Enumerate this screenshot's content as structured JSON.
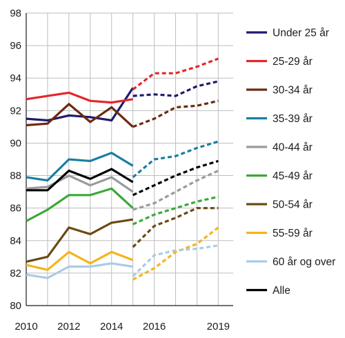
{
  "chart_data": {
    "type": "line",
    "title": "",
    "xlabel": "",
    "ylabel": "",
    "xlim": [
      2010,
      2019.7
    ],
    "ylim": [
      80,
      98
    ],
    "y_ticks": [
      80,
      82,
      84,
      86,
      88,
      90,
      92,
      94,
      96,
      98
    ],
    "x_ticks": [
      2010,
      2012,
      2014,
      2016,
      2019
    ],
    "vertical_grid": [
      2011,
      2012,
      2013,
      2014,
      2015,
      2016,
      2017,
      2018,
      2019
    ],
    "grid": true,
    "legend_position": "right",
    "series": [
      {
        "name": "Under 25 år",
        "color": "#1f1a6e",
        "actual": {
          "x": [
            2010,
            2011,
            2012,
            2013,
            2014,
            2015
          ],
          "y": [
            91.5,
            91.4,
            91.7,
            91.6,
            91.4,
            93.4
          ]
        },
        "projected": {
          "x": [
            2015,
            2016,
            2017,
            2018,
            2019
          ],
          "y": [
            92.9,
            93.0,
            92.9,
            93.5,
            93.8
          ]
        }
      },
      {
        "name": "25-29 år",
        "color": "#e3262b",
        "actual": {
          "x": [
            2010,
            2011,
            2012,
            2013,
            2014,
            2015
          ],
          "y": [
            92.7,
            92.9,
            93.1,
            92.6,
            92.5,
            92.7
          ]
        },
        "projected": {
          "x": [
            2015,
            2016,
            2017,
            2018,
            2019
          ],
          "y": [
            93.3,
            94.3,
            94.3,
            94.7,
            95.2
          ]
        }
      },
      {
        "name": "30-34 år",
        "color": "#6b2a12",
        "actual": {
          "x": [
            2010,
            2011,
            2012,
            2013,
            2014,
            2015
          ],
          "y": [
            91.1,
            91.2,
            92.4,
            91.3,
            92.2,
            91.0
          ]
        },
        "projected": {
          "x": [
            2015,
            2016,
            2017,
            2018,
            2019
          ],
          "y": [
            91.0,
            91.5,
            92.2,
            92.3,
            92.6
          ]
        }
      },
      {
        "name": "35-39 år",
        "color": "#1b7da0",
        "actual": {
          "x": [
            2010,
            2011,
            2012,
            2013,
            2014,
            2015
          ],
          "y": [
            87.9,
            87.7,
            89.0,
            88.9,
            89.4,
            88.6
          ]
        },
        "projected": {
          "x": [
            2015,
            2016,
            2017,
            2018,
            2019
          ],
          "y": [
            87.9,
            89.0,
            89.2,
            89.7,
            90.1
          ]
        }
      },
      {
        "name": "40-44 år",
        "color": "#9a9a9a",
        "actual": {
          "x": [
            2010,
            2011,
            2012,
            2013,
            2014,
            2015
          ],
          "y": [
            87.2,
            87.3,
            88.0,
            87.4,
            87.9,
            87.0
          ]
        },
        "projected": {
          "x": [
            2015,
            2016,
            2017,
            2018,
            2019
          ],
          "y": [
            85.9,
            86.3,
            87.0,
            87.7,
            88.3
          ]
        }
      },
      {
        "name": "45-49 år",
        "color": "#3aa838",
        "actual": {
          "x": [
            2010,
            2011,
            2012,
            2013,
            2014,
            2015
          ],
          "y": [
            85.2,
            85.9,
            86.8,
            86.8,
            87.2,
            86.0
          ]
        },
        "projected": {
          "x": [
            2015,
            2016,
            2017,
            2018,
            2019
          ],
          "y": [
            85.0,
            85.6,
            86.0,
            86.4,
            86.7
          ]
        }
      },
      {
        "name": "50-54 år",
        "color": "#6b4a12",
        "actual": {
          "x": [
            2010,
            2011,
            2012,
            2013,
            2014,
            2015
          ],
          "y": [
            82.7,
            83.0,
            84.8,
            84.4,
            85.1,
            85.3
          ]
        },
        "projected": {
          "x": [
            2015,
            2016,
            2017,
            2018,
            2019
          ],
          "y": [
            83.6,
            84.9,
            85.4,
            86.0,
            86.0
          ]
        }
      },
      {
        "name": "55-59 år",
        "color": "#f5b31c",
        "actual": {
          "x": [
            2010,
            2011,
            2012,
            2013,
            2014,
            2015
          ],
          "y": [
            82.5,
            82.2,
            83.3,
            82.6,
            83.3,
            82.8
          ]
        },
        "projected": {
          "x": [
            2015,
            2016,
            2017,
            2018,
            2019
          ],
          "y": [
            81.6,
            82.3,
            83.3,
            83.8,
            84.8
          ]
        }
      },
      {
        "name": "60 år og over",
        "color": "#a9cbe6",
        "actual": {
          "x": [
            2010,
            2011,
            2012,
            2013,
            2014,
            2015
          ],
          "y": [
            81.9,
            81.7,
            82.4,
            82.4,
            82.6,
            82.4
          ]
        },
        "projected": {
          "x": [
            2015,
            2016,
            2017,
            2018,
            2019
          ],
          "y": [
            81.8,
            83.1,
            83.4,
            83.5,
            83.7
          ]
        }
      },
      {
        "name": "Alle",
        "color": "#000000",
        "actual": {
          "x": [
            2010,
            2011,
            2012,
            2013,
            2014,
            2015
          ],
          "y": [
            87.1,
            87.1,
            88.3,
            87.8,
            88.4,
            87.6
          ]
        },
        "projected": {
          "x": [
            2015,
            2016,
            2017,
            2018,
            2019
          ],
          "y": [
            86.8,
            87.4,
            88.0,
            88.5,
            88.9
          ]
        }
      }
    ]
  }
}
